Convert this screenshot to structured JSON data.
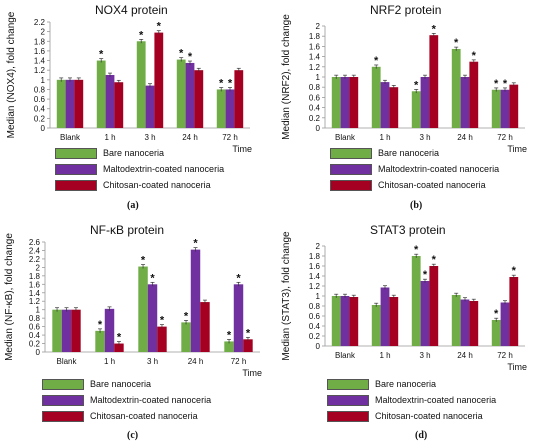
{
  "colors": {
    "bare": "#70ad47",
    "malto": "#7030a0",
    "chitosan": "#a50021",
    "axis": "#999999"
  },
  "legend": {
    "bare": "Bare nanoceria",
    "malto": "Maltodextrin-coated nanoceria",
    "chitosan": "Chitosan-coated nanoceria"
  },
  "chart_data": [
    {
      "type": "bar",
      "panel_label": "(a)",
      "title": "NOX4 protein",
      "ylabel": "Median (NOX4), fold change",
      "xlabel": "Time",
      "categories": [
        "Blank",
        "1 h",
        "3 h",
        "24 h",
        "72 h"
      ],
      "ylim": [
        0,
        2.2
      ],
      "yticks": [
        0,
        0.2,
        0.4,
        0.6,
        0.8,
        1,
        1.2,
        1.4,
        1.6,
        1.8,
        2,
        2.2
      ],
      "series": [
        {
          "name": "Bare nanoceria",
          "values": [
            1.0,
            1.4,
            1.8,
            1.42,
            0.8
          ],
          "stars": [
            false,
            true,
            true,
            true,
            true
          ]
        },
        {
          "name": "Maltodextrin-coated nanoceria",
          "values": [
            1.0,
            1.1,
            0.88,
            1.35,
            0.8
          ],
          "stars": [
            false,
            false,
            false,
            true,
            true
          ]
        },
        {
          "name": "Chitosan-coated nanoceria",
          "values": [
            1.0,
            0.95,
            1.98,
            1.2,
            1.2
          ],
          "stars": [
            false,
            false,
            true,
            false,
            false
          ]
        }
      ]
    },
    {
      "type": "bar",
      "panel_label": "(b)",
      "title": "NRF2 protein",
      "ylabel": "Median (NRF2), fold change",
      "xlabel": "Time",
      "categories": [
        "Blank",
        "1 h",
        "3 h",
        "24 h",
        "72 h"
      ],
      "ylim": [
        0,
        2
      ],
      "yticks": [
        0,
        0.2,
        0.4,
        0.6,
        0.8,
        1,
        1.2,
        1.4,
        1.6,
        1.8,
        2
      ],
      "series": [
        {
          "name": "Bare nanoceria",
          "values": [
            1.0,
            1.2,
            0.72,
            1.55,
            0.75
          ],
          "stars": [
            false,
            true,
            true,
            true,
            true
          ]
        },
        {
          "name": "Maltodextrin-coated nanoceria",
          "values": [
            1.0,
            0.9,
            1.0,
            1.0,
            0.75
          ],
          "stars": [
            false,
            false,
            false,
            false,
            true
          ]
        },
        {
          "name": "Chitosan-coated nanoceria",
          "values": [
            1.0,
            0.8,
            1.82,
            1.3,
            0.85
          ],
          "stars": [
            false,
            false,
            true,
            true,
            false
          ]
        }
      ]
    },
    {
      "type": "bar",
      "panel_label": "(c)",
      "title": "NF-κB protein",
      "ylabel": "Median (NF-κB), fold change",
      "xlabel": "Time",
      "categories": [
        "Blank",
        "1 h",
        "3 h",
        "24 h",
        "72 h"
      ],
      "ylim": [
        0,
        2.6
      ],
      "yticks": [
        0,
        0.2,
        0.4,
        0.6,
        0.8,
        1,
        1.2,
        1.4,
        1.6,
        1.8,
        2,
        2.2,
        2.4,
        2.6
      ],
      "series": [
        {
          "name": "Bare nanoceria",
          "values": [
            1.0,
            0.5,
            2.02,
            0.7,
            0.25
          ],
          "stars": [
            false,
            true,
            true,
            true,
            true
          ]
        },
        {
          "name": "Maltodextrin-coated nanoceria",
          "values": [
            1.0,
            1.02,
            1.6,
            2.42,
            1.6
          ],
          "stars": [
            false,
            false,
            true,
            true,
            true
          ]
        },
        {
          "name": "Chitosan-coated nanoceria",
          "values": [
            1.0,
            0.2,
            0.6,
            1.18,
            0.3
          ],
          "stars": [
            false,
            true,
            true,
            false,
            true
          ]
        }
      ]
    },
    {
      "type": "bar",
      "panel_label": "(d)",
      "title": "STAT3 protein",
      "ylabel": "Median (STAT3), fold change",
      "xlabel": "Time",
      "categories": [
        "Blank",
        "1 h",
        "3 h",
        "24 h",
        "72 h"
      ],
      "ylim": [
        0,
        2
      ],
      "yticks": [
        0,
        0.2,
        0.4,
        0.6,
        0.8,
        1,
        1.2,
        1.4,
        1.6,
        1.8,
        2
      ],
      "series": [
        {
          "name": "Bare nanoceria",
          "values": [
            1.0,
            0.82,
            1.8,
            1.02,
            0.52
          ],
          "stars": [
            false,
            false,
            true,
            false,
            true
          ]
        },
        {
          "name": "Maltodextrin-coated nanoceria",
          "values": [
            1.0,
            1.17,
            1.3,
            0.93,
            0.87
          ],
          "stars": [
            false,
            false,
            true,
            false,
            false
          ]
        },
        {
          "name": "Chitosan-coated nanoceria",
          "values": [
            0.98,
            0.98,
            1.6,
            0.9,
            1.38
          ],
          "stars": [
            false,
            false,
            true,
            false,
            true
          ]
        }
      ]
    }
  ]
}
